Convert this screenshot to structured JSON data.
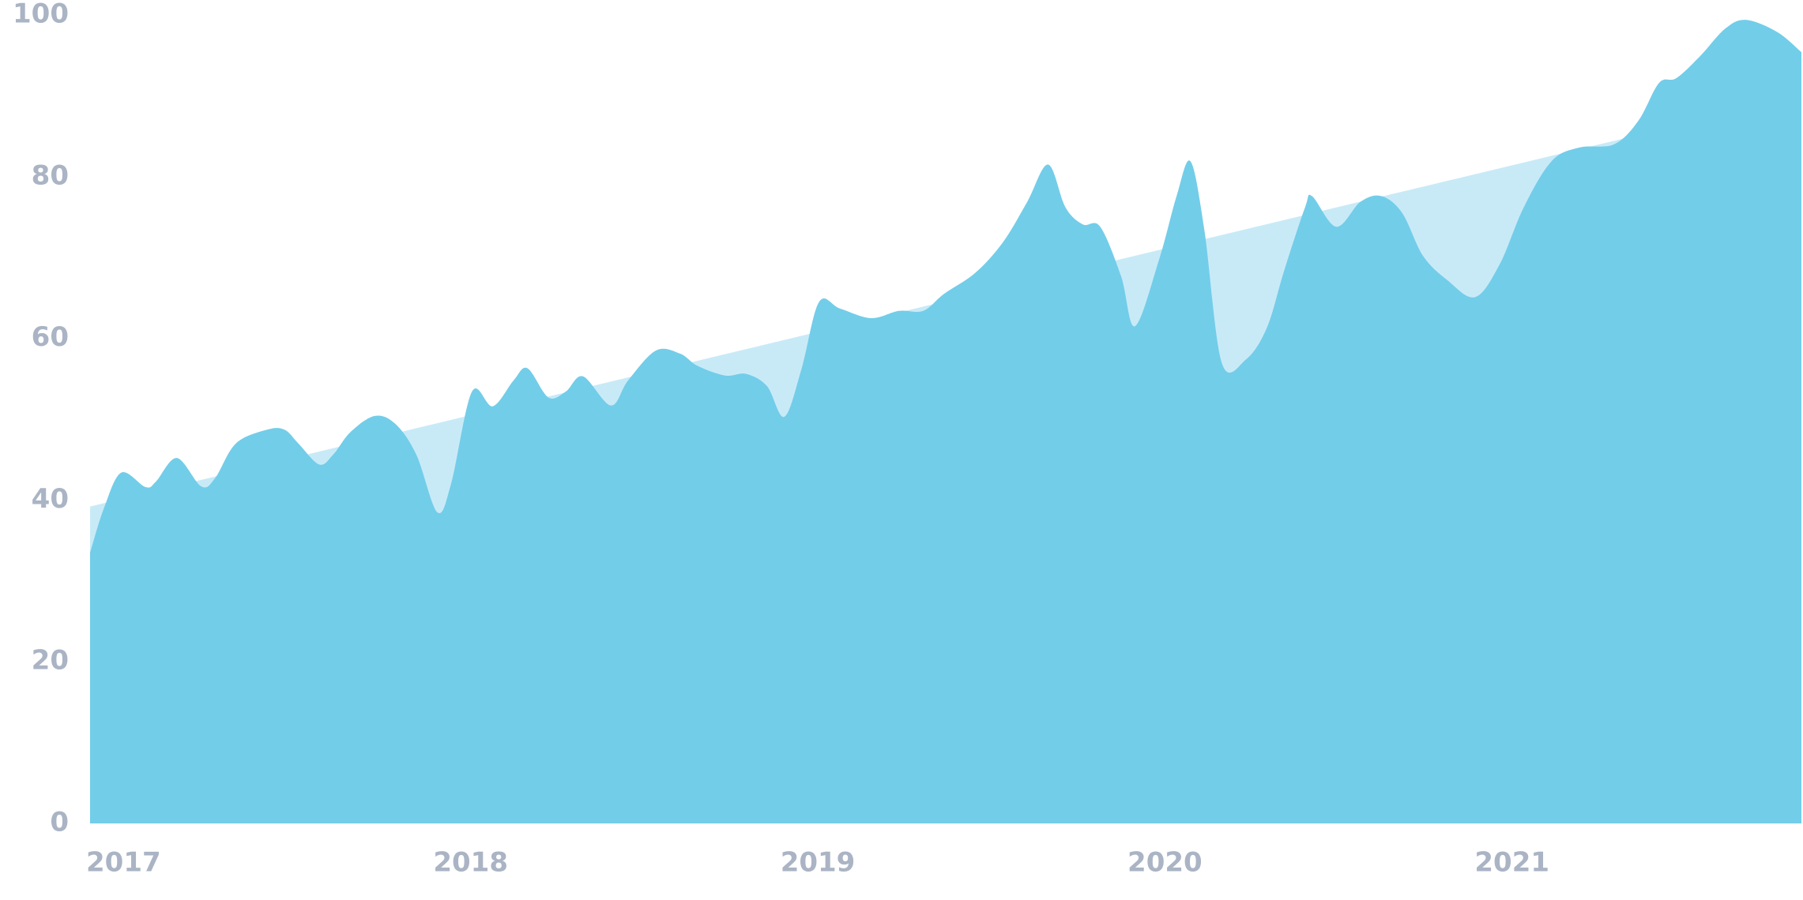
{
  "chart_data": {
    "type": "area",
    "xlim": [
      2017,
      2021.93
    ],
    "xticks": [
      2017,
      2018,
      2019,
      2020,
      2021
    ],
    "ylim": [
      0,
      100
    ],
    "yticks": [
      0,
      20,
      40,
      60,
      80,
      100
    ],
    "series": [
      {
        "color": "#c8eaf7",
        "x": [
          2017,
          2021.93
        ],
        "values": [
          39.2,
          90
        ]
      },
      {
        "color": "#72cde9",
        "x": [
          2017.0,
          2017.04,
          2017.09,
          2017.16,
          2017.19,
          2017.25,
          2017.32,
          2017.36,
          2017.42,
          2017.51,
          2017.56,
          2017.6,
          2017.66,
          2017.7,
          2017.75,
          2017.82,
          2017.88,
          2017.94,
          2018.0,
          2018.04,
          2018.1,
          2018.16,
          2018.22,
          2018.26,
          2018.32,
          2018.37,
          2018.42,
          2018.5,
          2018.55,
          2018.63,
          2018.7,
          2018.75,
          2018.83,
          2018.89,
          2018.95,
          2019.0,
          2019.05,
          2019.1,
          2019.16,
          2019.25,
          2019.33,
          2019.4,
          2019.46,
          2019.55,
          2019.63,
          2019.7,
          2019.76,
          2019.81,
          2019.86,
          2019.91,
          2019.97,
          2020.01,
          2020.08,
          2020.13,
          2020.17,
          2020.21,
          2020.26,
          2020.33,
          2020.39,
          2020.44,
          2020.5,
          2020.52,
          2020.59,
          2020.66,
          2020.72,
          2020.78,
          2020.84,
          2020.91,
          2020.99,
          2021.06,
          2021.13,
          2021.21,
          2021.29,
          2021.39,
          2021.46,
          2021.52,
          2021.57,
          2021.64,
          2021.71,
          2021.77,
          2021.86,
          2021.93
        ],
        "values": [
          33.5,
          39,
          43.4,
          41.6,
          42.3,
          45.2,
          41.7,
          42.7,
          47,
          48.7,
          48.7,
          47,
          44.4,
          45.6,
          48.4,
          50.4,
          49.4,
          45.6,
          38.5,
          42,
          53.4,
          51.6,
          54.8,
          56.3,
          52.7,
          53.4,
          55.3,
          51.7,
          54.8,
          58.5,
          58.1,
          56.6,
          55.4,
          55.6,
          54.1,
          50.3,
          56.3,
          64.5,
          63.7,
          62.5,
          63.4,
          63.4,
          65.5,
          68.1,
          71.9,
          76.9,
          81.5,
          76.2,
          74.1,
          73.8,
          67.7,
          61.5,
          69.8,
          77.6,
          81.9,
          73.4,
          57,
          57.4,
          61.3,
          68.4,
          76.2,
          77.6,
          73.8,
          76.9,
          77.6,
          75.5,
          70.2,
          67.2,
          65.1,
          69.1,
          76.2,
          81.9,
          83.6,
          84,
          86.9,
          91.6,
          92.2,
          95,
          98.3,
          99.4,
          97.9,
          95.4
        ]
      }
    ]
  }
}
